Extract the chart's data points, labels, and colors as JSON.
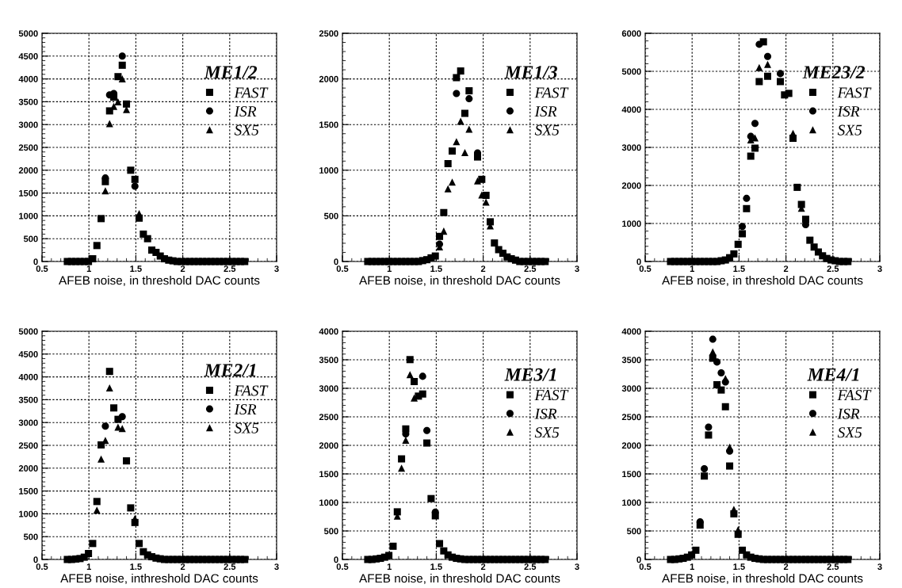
{
  "chart_data": [
    {
      "type": "scatter",
      "legend_title": "ME1/2",
      "xlabel": "AFEB noise, in threshold DAC counts",
      "legend": "top right",
      "grid": true,
      "xlim": [
        0.5,
        3
      ],
      "xticks": [
        0.5,
        1,
        1.5,
        2,
        2.5,
        3
      ],
      "ylim": [
        0,
        5000
      ],
      "yticks": [
        0,
        500,
        1000,
        1500,
        2000,
        2500,
        3000,
        3500,
        4000,
        4500,
        5000
      ],
      "x": [
        0.77,
        0.815,
        0.86,
        0.905,
        0.95,
        0.995,
        1.04,
        1.085,
        1.13,
        1.175,
        1.22,
        1.265,
        1.31,
        1.355,
        1.4,
        1.445,
        1.49,
        1.535,
        1.58,
        1.625,
        1.67,
        1.715,
        1.76,
        1.805,
        1.85,
        1.895,
        1.94,
        1.985,
        2.03,
        2.075,
        2.12,
        2.165,
        2.21,
        2.255,
        2.3,
        2.345,
        2.39,
        2.435,
        2.48,
        2.525,
        2.57,
        2.615,
        2.66
      ],
      "series": [
        {
          "name": "FAST",
          "color": "#000000",
          "marker": "square",
          "values": [
            0,
            0,
            0,
            0,
            0,
            0,
            60,
            350,
            940,
            1750,
            3300,
            3600,
            4050,
            4300,
            3450,
            2000,
            1800,
            950,
            600,
            500,
            250,
            200,
            120,
            60,
            30,
            15,
            0,
            0,
            0,
            0,
            0,
            0,
            0,
            0,
            0,
            0,
            0,
            0,
            0,
            0,
            0,
            0,
            0
          ]
        },
        {
          "name": "ISR",
          "color": "#000000",
          "marker": "circle",
          "values": [
            null,
            null,
            null,
            null,
            null,
            null,
            null,
            null,
            null,
            1830,
            3650,
            3680,
            null,
            4500,
            null,
            null,
            1650,
            null,
            null,
            null,
            null,
            null,
            null,
            null,
            null,
            null,
            null,
            null,
            null,
            null,
            null,
            null,
            null,
            null,
            null,
            null,
            null,
            null,
            null,
            null,
            null,
            null,
            null
          ]
        },
        {
          "name": "SX5",
          "color": "#000000",
          "marker": "triangle",
          "values": [
            null,
            null,
            null,
            null,
            null,
            null,
            null,
            null,
            null,
            1550,
            3020,
            3400,
            3500,
            4000,
            3330,
            null,
            null,
            1050,
            null,
            null,
            null,
            null,
            null,
            null,
            null,
            null,
            null,
            null,
            null,
            null,
            null,
            null,
            null,
            null,
            null,
            null,
            null,
            null,
            null,
            null,
            null,
            null,
            null
          ]
        }
      ]
    },
    {
      "type": "scatter",
      "legend_title": "ME1/3",
      "xlabel": "AFEB noise, in threshold DAC counts",
      "legend": "top right",
      "grid": true,
      "xlim": [
        0.5,
        3
      ],
      "xticks": [
        0.5,
        1,
        1.5,
        2,
        2.5,
        3
      ],
      "ylim": [
        0,
        2500
      ],
      "yticks": [
        0,
        500,
        1000,
        1500,
        2000,
        2500
      ],
      "x": [
        0.77,
        0.815,
        0.86,
        0.905,
        0.95,
        0.995,
        1.04,
        1.085,
        1.13,
        1.175,
        1.22,
        1.265,
        1.31,
        1.355,
        1.4,
        1.445,
        1.49,
        1.535,
        1.58,
        1.625,
        1.67,
        1.715,
        1.76,
        1.805,
        1.85,
        1.895,
        1.94,
        1.985,
        2.03,
        2.075,
        2.12,
        2.165,
        2.21,
        2.255,
        2.3,
        2.345,
        2.39,
        2.435,
        2.48,
        2.525,
        2.57,
        2.615,
        2.66
      ],
      "series": [
        {
          "name": "FAST",
          "color": "#000000",
          "marker": "square",
          "values": [
            0,
            0,
            0,
            0,
            0,
            0,
            0,
            0,
            0,
            0,
            0,
            0,
            0,
            10,
            20,
            40,
            60,
            275,
            536,
            1072,
            1210,
            2014,
            2087,
            1623,
            1870,
            null,
            1145,
            900,
            725,
            435,
            203,
            130,
            90,
            50,
            30,
            15,
            0,
            0,
            0,
            0,
            0,
            0,
            0
          ]
        },
        {
          "name": "ISR",
          "color": "#000000",
          "marker": "circle",
          "values": [
            null,
            null,
            null,
            null,
            null,
            null,
            null,
            null,
            null,
            null,
            null,
            null,
            null,
            null,
            null,
            null,
            null,
            190,
            null,
            null,
            null,
            1840,
            null,
            null,
            1783,
            null,
            1190,
            null,
            null,
            null,
            null,
            null,
            null,
            null,
            null,
            null,
            null,
            null,
            null,
            null,
            null,
            null,
            null
          ]
        },
        {
          "name": "SX5",
          "color": "#000000",
          "marker": "triangle",
          "values": [
            null,
            null,
            null,
            null,
            null,
            null,
            null,
            null,
            null,
            null,
            null,
            null,
            null,
            null,
            null,
            null,
            null,
            160,
            333,
            797,
            870,
            1313,
            1536,
            1194,
            1449,
            null,
            884,
            730,
            652,
            391,
            null,
            null,
            null,
            null,
            null,
            null,
            null,
            null,
            null,
            null,
            null,
            null,
            null
          ]
        }
      ]
    },
    {
      "type": "scatter",
      "legend_title": "ME23/2",
      "xlabel": "AFEB noise, in threshold DAC counts",
      "legend": "top right",
      "grid": true,
      "xlim": [
        0.5,
        3
      ],
      "xticks": [
        0.5,
        1,
        1.5,
        2,
        2.5,
        3
      ],
      "ylim": [
        0,
        6000
      ],
      "yticks": [
        0,
        1000,
        2000,
        3000,
        4000,
        5000,
        6000
      ],
      "x": [
        0.77,
        0.815,
        0.86,
        0.905,
        0.95,
        0.995,
        1.04,
        1.085,
        1.13,
        1.175,
        1.22,
        1.265,
        1.31,
        1.355,
        1.4,
        1.445,
        1.49,
        1.535,
        1.58,
        1.625,
        1.67,
        1.715,
        1.76,
        1.805,
        1.85,
        1.895,
        1.94,
        1.985,
        2.03,
        2.075,
        2.12,
        2.165,
        2.21,
        2.255,
        2.3,
        2.345,
        2.39,
        2.435,
        2.48,
        2.525,
        2.57,
        2.615,
        2.66
      ],
      "series": [
        {
          "name": "FAST",
          "color": "#000000",
          "marker": "square",
          "values": [
            0,
            0,
            0,
            0,
            0,
            0,
            0,
            0,
            0,
            0,
            0,
            0,
            20,
            40,
            100,
            200,
            452,
            730,
            1390,
            2770,
            2980,
            4730,
            5775,
            4870,
            null,
            null,
            4730,
            4380,
            4420,
            3240,
            1950,
            1500,
            1110,
            560,
            380,
            250,
            150,
            80,
            40,
            20,
            0,
            0,
            0
          ]
        },
        {
          "name": "ISR",
          "color": "#000000",
          "marker": "circle",
          "values": [
            null,
            null,
            null,
            null,
            null,
            null,
            null,
            null,
            null,
            null,
            null,
            null,
            null,
            null,
            null,
            null,
            null,
            920,
            1660,
            3290,
            3630,
            5710,
            null,
            5390,
            null,
            null,
            4940,
            null,
            null,
            null,
            null,
            null,
            970,
            null,
            null,
            null,
            null,
            null,
            null,
            null,
            null,
            null,
            null
          ]
        },
        {
          "name": "SX5",
          "color": "#000000",
          "marker": "triangle",
          "values": [
            null,
            null,
            null,
            null,
            null,
            null,
            null,
            null,
            null,
            null,
            null,
            null,
            null,
            null,
            null,
            null,
            null,
            null,
            null,
            3200,
            3250,
            5100,
            null,
            5180,
            null,
            null,
            null,
            null,
            null,
            3370,
            null,
            1400,
            null,
            null,
            null,
            null,
            null,
            null,
            null,
            null,
            null,
            null,
            null
          ]
        }
      ]
    },
    {
      "type": "scatter",
      "legend_title": "ME2/1",
      "xlabel": "AFEB noise, inthreshold DAC counts",
      "legend": "top right",
      "grid": true,
      "xlim": [
        0.5,
        3
      ],
      "xticks": [
        0.5,
        1,
        1.5,
        2,
        2.5,
        3
      ],
      "ylim": [
        0,
        5000
      ],
      "yticks": [
        0,
        500,
        1000,
        1500,
        2000,
        2500,
        3000,
        3500,
        4000,
        4500,
        5000
      ],
      "x": [
        0.77,
        0.815,
        0.86,
        0.905,
        0.95,
        0.995,
        1.04,
        1.085,
        1.13,
        1.175,
        1.22,
        1.265,
        1.31,
        1.355,
        1.4,
        1.445,
        1.49,
        1.535,
        1.58,
        1.625,
        1.67,
        1.715,
        1.76,
        1.805,
        1.85,
        1.895,
        1.94,
        1.985,
        2.03,
        2.075,
        2.12,
        2.165,
        2.21,
        2.255,
        2.3,
        2.345,
        2.39,
        2.435,
        2.48,
        2.525,
        2.57,
        2.615,
        2.66
      ],
      "series": [
        {
          "name": "FAST",
          "color": "#000000",
          "marker": "square",
          "values": [
            0,
            0,
            10,
            20,
            50,
            130,
            350,
            1270,
            2510,
            null,
            4120,
            3320,
            3070,
            null,
            2160,
            1130,
            810,
            350,
            170,
            100,
            60,
            30,
            15,
            0,
            0,
            0,
            0,
            0,
            0,
            0,
            0,
            0,
            0,
            0,
            0,
            0,
            0,
            0,
            0,
            0,
            0,
            0,
            0
          ]
        },
        {
          "name": "ISR",
          "color": "#000000",
          "marker": "circle",
          "values": [
            null,
            null,
            null,
            null,
            null,
            null,
            null,
            null,
            null,
            2920,
            null,
            null,
            null,
            3130,
            null,
            null,
            null,
            null,
            null,
            null,
            null,
            null,
            null,
            null,
            null,
            null,
            null,
            null,
            null,
            null,
            null,
            null,
            null,
            null,
            null,
            null,
            null,
            null,
            null,
            null,
            null,
            null,
            null
          ]
        },
        {
          "name": "SX5",
          "color": "#000000",
          "marker": "triangle",
          "values": [
            null,
            null,
            null,
            null,
            null,
            null,
            null,
            1080,
            2200,
            2610,
            3760,
            null,
            2900,
            2870,
            null,
            null,
            900,
            null,
            null,
            null,
            null,
            null,
            null,
            null,
            null,
            null,
            null,
            null,
            null,
            null,
            null,
            null,
            null,
            null,
            null,
            null,
            null,
            null,
            null,
            null,
            null,
            null,
            null
          ]
        }
      ]
    },
    {
      "type": "scatter",
      "legend_title": "ME3/1",
      "xlabel": "AFEB noise, in threshold DAC counts",
      "legend": "right",
      "grid": true,
      "xlim": [
        0.5,
        3
      ],
      "xticks": [
        0.5,
        1,
        1.5,
        2,
        2.5,
        3
      ],
      "ylim": [
        0,
        4000
      ],
      "yticks": [
        0,
        500,
        1000,
        1500,
        2000,
        2500,
        3000,
        3500,
        4000
      ],
      "x": [
        0.77,
        0.815,
        0.86,
        0.905,
        0.95,
        0.995,
        1.04,
        1.085,
        1.13,
        1.175,
        1.22,
        1.265,
        1.31,
        1.355,
        1.4,
        1.445,
        1.49,
        1.535,
        1.58,
        1.625,
        1.67,
        1.715,
        1.76,
        1.805,
        1.85,
        1.895,
        1.94,
        1.985,
        2.03,
        2.075,
        2.12,
        2.165,
        2.21,
        2.255,
        2.3,
        2.345,
        2.39,
        2.435,
        2.48,
        2.525,
        2.57,
        2.615,
        2.66
      ],
      "series": [
        {
          "name": "FAST",
          "color": "#000000",
          "marker": "square",
          "values": [
            0,
            0,
            10,
            20,
            40,
            70,
            232,
            835,
            1763,
            2288,
            3503,
            3118,
            2863,
            2900,
            2041,
            1067,
            765,
            278,
            150,
            80,
            40,
            20,
            10,
            0,
            0,
            0,
            0,
            0,
            0,
            0,
            0,
            0,
            0,
            0,
            0,
            0,
            0,
            0,
            0,
            0,
            0,
            0,
            0
          ]
        },
        {
          "name": "ISR",
          "color": "#000000",
          "marker": "circle",
          "values": [
            null,
            null,
            null,
            null,
            null,
            null,
            null,
            null,
            null,
            2200,
            null,
            null,
            null,
            3210,
            2260,
            null,
            830,
            null,
            null,
            null,
            null,
            null,
            null,
            null,
            null,
            null,
            null,
            null,
            null,
            null,
            null,
            null,
            null,
            null,
            null,
            null,
            null,
            null,
            null,
            null,
            null,
            null,
            null
          ]
        },
        {
          "name": "SX5",
          "color": "#000000",
          "marker": "triangle",
          "values": [
            null,
            null,
            null,
            null,
            null,
            null,
            null,
            760,
            1600,
            2090,
            3240,
            2830,
            null,
            null,
            null,
            null,
            null,
            null,
            null,
            null,
            null,
            null,
            null,
            null,
            null,
            null,
            null,
            null,
            null,
            null,
            null,
            null,
            null,
            null,
            null,
            null,
            null,
            null,
            null,
            null,
            null,
            null,
            null
          ]
        }
      ]
    },
    {
      "type": "scatter",
      "legend_title": "ME4/1",
      "xlabel": "AFEB noise, in threshold DAC counts",
      "legend": "right",
      "grid": true,
      "xlim": [
        0.5,
        3
      ],
      "xticks": [
        0.5,
        1,
        1.5,
        2,
        2.5,
        3
      ],
      "ylim": [
        0,
        4000
      ],
      "yticks": [
        0,
        500,
        1000,
        1500,
        2000,
        2500,
        3000,
        3500,
        4000
      ],
      "x": [
        0.77,
        0.815,
        0.86,
        0.905,
        0.95,
        0.995,
        1.04,
        1.085,
        1.13,
        1.175,
        1.22,
        1.265,
        1.31,
        1.355,
        1.4,
        1.445,
        1.49,
        1.535,
        1.58,
        1.625,
        1.67,
        1.715,
        1.76,
        1.805,
        1.85,
        1.895,
        1.94,
        1.985,
        2.03,
        2.075,
        2.12,
        2.165,
        2.21,
        2.255,
        2.3,
        2.345,
        2.39,
        2.435,
        2.48,
        2.525,
        2.57,
        2.615,
        2.66
      ],
      "series": [
        {
          "name": "FAST",
          "color": "#000000",
          "marker": "square",
          "values": [
            0,
            0,
            10,
            20,
            40,
            80,
            162,
            603,
            1462,
            2181,
            3527,
            3063,
            2970,
            2677,
            1638,
            800,
            441,
            162,
            80,
            40,
            20,
            10,
            0,
            0,
            0,
            0,
            0,
            0,
            0,
            0,
            0,
            0,
            0,
            0,
            0,
            0,
            0,
            0,
            0,
            0,
            0,
            0,
            0
          ]
        },
        {
          "name": "ISR",
          "color": "#000000",
          "marker": "circle",
          "values": [
            null,
            null,
            null,
            null,
            null,
            null,
            null,
            660,
            1590,
            2320,
            3860,
            3460,
            3270,
            3110,
            1900,
            null,
            null,
            null,
            null,
            null,
            null,
            null,
            null,
            null,
            null,
            null,
            null,
            null,
            null,
            null,
            null,
            null,
            null,
            null,
            null,
            null,
            null,
            null,
            null,
            null,
            null,
            null,
            null
          ]
        },
        {
          "name": "SX5",
          "color": "#000000",
          "marker": "triangle",
          "values": [
            null,
            null,
            null,
            null,
            null,
            null,
            null,
            null,
            null,
            null,
            3640,
            null,
            null,
            3170,
            1970,
            880,
            520,
            null,
            null,
            null,
            null,
            null,
            null,
            null,
            null,
            null,
            null,
            null,
            null,
            null,
            null,
            null,
            null,
            null,
            null,
            null,
            null,
            null,
            null,
            null,
            null,
            null,
            null
          ]
        }
      ]
    }
  ]
}
